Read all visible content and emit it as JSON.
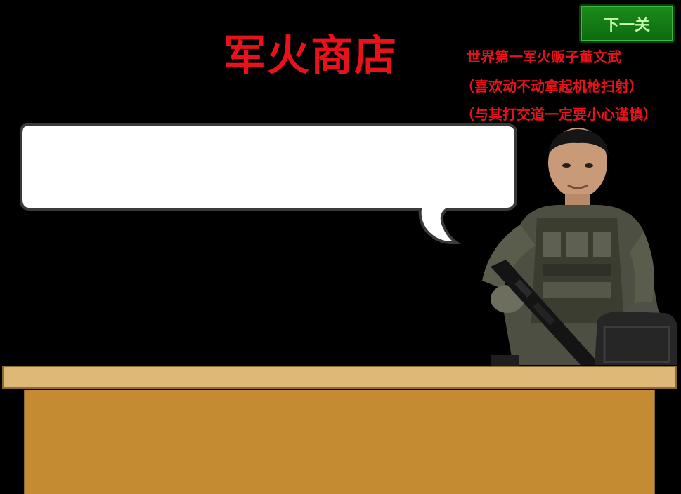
{
  "next_level_button": {
    "label": "下一关"
  },
  "shop": {
    "title": "军火商店",
    "intro_lines": [
      "世界第一军火贩子董文武",
      "（喜欢动不动拿起机枪扫射）",
      "（与其打交道一定要小心谨慎）"
    ]
  },
  "speech_bubble": {
    "text": ""
  },
  "merchant": {
    "name": "merchant-soldier"
  },
  "colors": {
    "background": "#000000",
    "title_red": "#e8121a",
    "button_green": "#1c8c1c",
    "counter_top": "#deb877",
    "counter_front": "#c48b32"
  }
}
